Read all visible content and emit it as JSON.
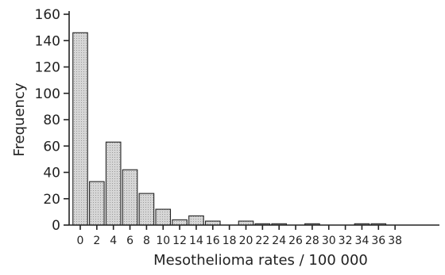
{
  "chart_data": {
    "type": "bar",
    "title": "",
    "xlabel": "Mesothelioma rates / 100 000",
    "ylabel": "Frequency",
    "ylim": [
      0,
      160
    ],
    "yticks": [
      "0",
      "20",
      "40",
      "60",
      "80",
      "100",
      "120",
      "140",
      "160"
    ],
    "categories": [
      "0",
      "2",
      "4",
      "6",
      "8",
      "10",
      "12",
      "14",
      "16",
      "18",
      "20",
      "22",
      "24",
      "26",
      "28",
      "30",
      "32",
      "34",
      "36",
      "38"
    ],
    "values": [
      146,
      33,
      63,
      42,
      24,
      12,
      4,
      7,
      3,
      0,
      3,
      1,
      1,
      0,
      1,
      0,
      0,
      1,
      1,
      0
    ],
    "bar_fill": "#d6d6d6",
    "grid": false
  }
}
